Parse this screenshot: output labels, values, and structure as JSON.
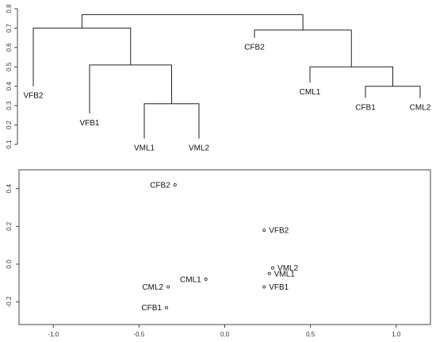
{
  "chart_data": [
    {
      "type": "dendrogram",
      "ylim": [
        0.1,
        0.8
      ],
      "yticks": [
        0.1,
        0.2,
        0.3,
        0.4,
        0.5,
        0.6,
        0.7,
        0.8
      ],
      "leaves": [
        {
          "name": "VFB2",
          "height": 0.4
        },
        {
          "name": "VFB1",
          "height": 0.26
        },
        {
          "name": "VML1",
          "height": 0.13
        },
        {
          "name": "VML2",
          "height": 0.13
        },
        {
          "name": "CFB2",
          "height": 0.65
        },
        {
          "name": "CML1",
          "height": 0.42
        },
        {
          "name": "CFB1",
          "height": 0.34
        },
        {
          "name": "CML2",
          "height": 0.34
        }
      ],
      "merges": [
        {
          "id": "m1",
          "children": [
            "VML1",
            "VML2"
          ],
          "height": 0.31
        },
        {
          "id": "m2",
          "children": [
            "VFB1",
            "m1"
          ],
          "height": 0.51
        },
        {
          "id": "m3",
          "children": [
            "VFB2",
            "m2"
          ],
          "height": 0.7
        },
        {
          "id": "m4",
          "children": [
            "CFB1",
            "CML2"
          ],
          "height": 0.4
        },
        {
          "id": "m5",
          "children": [
            "CML1",
            "m4"
          ],
          "height": 0.5
        },
        {
          "id": "m6",
          "children": [
            "CFB2",
            "m5"
          ],
          "height": 0.69
        },
        {
          "id": "m7",
          "children": [
            "m3",
            "m6"
          ],
          "height": 0.77
        }
      ]
    },
    {
      "type": "scatter",
      "xlim": [
        -1.2,
        1.2
      ],
      "ylim": [
        -0.32,
        0.5
      ],
      "xticks": [
        -1.0,
        -0.5,
        0.0,
        0.5,
        1.0
      ],
      "xtick_labels": [
        "-1.0",
        "-0.5",
        "0.0",
        "0.5",
        "1.0"
      ],
      "yticks": [
        -0.2,
        0.0,
        0.2,
        0.4
      ],
      "ytick_labels": [
        "-0.2",
        "0.0",
        "0.2",
        "0.4"
      ],
      "points": [
        {
          "label": "CFB2",
          "x": -0.29,
          "y": 0.42,
          "anchor": "end"
        },
        {
          "label": "VFB2",
          "x": 0.23,
          "y": 0.18,
          "anchor": "start"
        },
        {
          "label": "VML2",
          "x": 0.28,
          "y": -0.02,
          "anchor": "start"
        },
        {
          "label": "VML1",
          "x": 0.26,
          "y": -0.05,
          "anchor": "start"
        },
        {
          "label": "VFB1",
          "x": 0.23,
          "y": -0.12,
          "anchor": "start"
        },
        {
          "label": "CML1",
          "x": -0.11,
          "y": -0.08,
          "anchor": "end"
        },
        {
          "label": "CML2",
          "x": -0.33,
          "y": -0.12,
          "anchor": "end"
        },
        {
          "label": "CFB1",
          "x": -0.34,
          "y": -0.23,
          "anchor": "end"
        }
      ]
    }
  ]
}
